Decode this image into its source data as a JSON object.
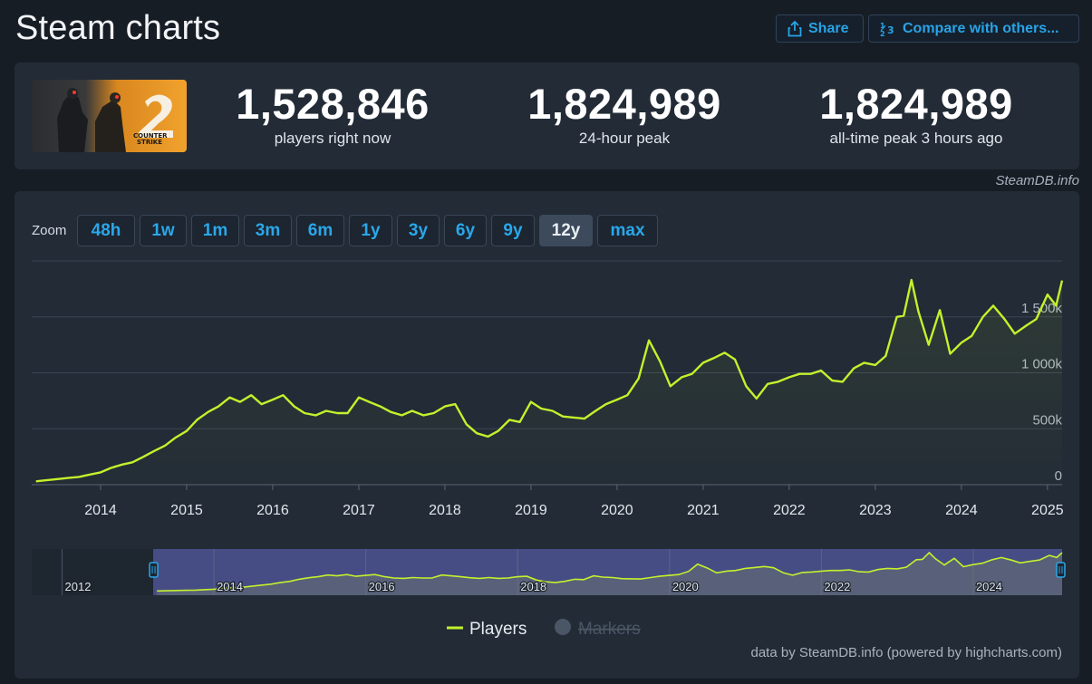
{
  "header": {
    "title": "Steam charts",
    "share_label": "Share",
    "compare_label": "Compare with others..."
  },
  "stats": {
    "current": {
      "value": "1,528,846",
      "label": "players right now"
    },
    "peak24": {
      "value": "1,824,989",
      "label": "24-hour peak"
    },
    "alltime": {
      "value": "1,824,989",
      "label": "all-time peak 3 hours ago"
    }
  },
  "credit_top": "SteamDB.info",
  "zoom": {
    "label": "Zoom",
    "buttons": [
      "48h",
      "1w",
      "1m",
      "3m",
      "6m",
      "1y",
      "3y",
      "6y",
      "9y",
      "12y",
      "max"
    ],
    "active": "12y"
  },
  "footer_credit": "data by SteamDB.info (powered by highcharts.com)",
  "colors": {
    "line": "#c3f12c",
    "accent": "#29a3e6",
    "background": "#171d25",
    "panel": "#222b36"
  },
  "chart_data": {
    "type": "line",
    "x_axis_labels": [
      "2014",
      "2015",
      "2016",
      "2017",
      "2018",
      "2019",
      "2020",
      "2021",
      "2022",
      "2023",
      "2024",
      "2025"
    ],
    "y_axis_labels": [
      "0",
      "500k",
      "1 000k",
      "1 500k"
    ],
    "ylim": [
      0,
      2000000
    ],
    "grid": true,
    "legend": {
      "position": "bottom-center",
      "items": [
        {
          "name": "Players",
          "visible": true
        },
        {
          "name": "Markers",
          "visible": false
        }
      ]
    },
    "navigator_labels": [
      "2012",
      "2014",
      "2016",
      "2018",
      "2020",
      "2022",
      "2024"
    ],
    "series": [
      {
        "name": "Players",
        "x": [
          2013.25,
          2013.37,
          2013.5,
          2013.62,
          2013.75,
          2013.87,
          2014.0,
          2014.12,
          2014.25,
          2014.37,
          2014.5,
          2014.62,
          2014.75,
          2014.87,
          2015.0,
          2015.12,
          2015.25,
          2015.37,
          2015.5,
          2015.62,
          2015.75,
          2015.87,
          2016.0,
          2016.12,
          2016.25,
          2016.37,
          2016.5,
          2016.62,
          2016.75,
          2016.87,
          2017.0,
          2017.12,
          2017.25,
          2017.37,
          2017.5,
          2017.62,
          2017.75,
          2017.87,
          2018.0,
          2018.12,
          2018.25,
          2018.37,
          2018.5,
          2018.62,
          2018.75,
          2018.87,
          2019.0,
          2019.12,
          2019.25,
          2019.37,
          2019.5,
          2019.62,
          2019.75,
          2019.87,
          2020.0,
          2020.12,
          2020.25,
          2020.37,
          2020.5,
          2020.62,
          2020.75,
          2020.87,
          2021.0,
          2021.12,
          2021.25,
          2021.37,
          2021.5,
          2021.62,
          2021.75,
          2021.87,
          2022.0,
          2022.12,
          2022.25,
          2022.37,
          2022.5,
          2022.62,
          2022.75,
          2022.87,
          2023.0,
          2023.12,
          2023.25,
          2023.33,
          2023.42,
          2023.5,
          2023.62,
          2023.75,
          2023.87,
          2024.0,
          2024.12,
          2024.25,
          2024.37,
          2024.5,
          2024.62,
          2024.75,
          2024.87,
          2025.0,
          2025.1,
          2025.17
        ],
        "values": [
          30000,
          40000,
          50000,
          60000,
          70000,
          90000,
          110000,
          150000,
          180000,
          200000,
          250000,
          300000,
          350000,
          420000,
          480000,
          580000,
          650000,
          700000,
          780000,
          740000,
          800000,
          720000,
          760000,
          800000,
          700000,
          640000,
          620000,
          660000,
          640000,
          640000,
          780000,
          740000,
          700000,
          650000,
          620000,
          660000,
          620000,
          640000,
          700000,
          720000,
          540000,
          460000,
          430000,
          480000,
          580000,
          560000,
          740000,
          680000,
          660000,
          610000,
          600000,
          590000,
          660000,
          720000,
          760000,
          800000,
          950000,
          1290000,
          1100000,
          880000,
          960000,
          990000,
          1090000,
          1130000,
          1180000,
          1120000,
          880000,
          770000,
          900000,
          920000,
          960000,
          990000,
          990000,
          1020000,
          930000,
          920000,
          1040000,
          1090000,
          1070000,
          1150000,
          1500000,
          1510000,
          1830000,
          1550000,
          1250000,
          1560000,
          1170000,
          1270000,
          1330000,
          1500000,
          1600000,
          1480000,
          1350000,
          1420000,
          1480000,
          1700000,
          1600000,
          1825000
        ]
      }
    ]
  }
}
